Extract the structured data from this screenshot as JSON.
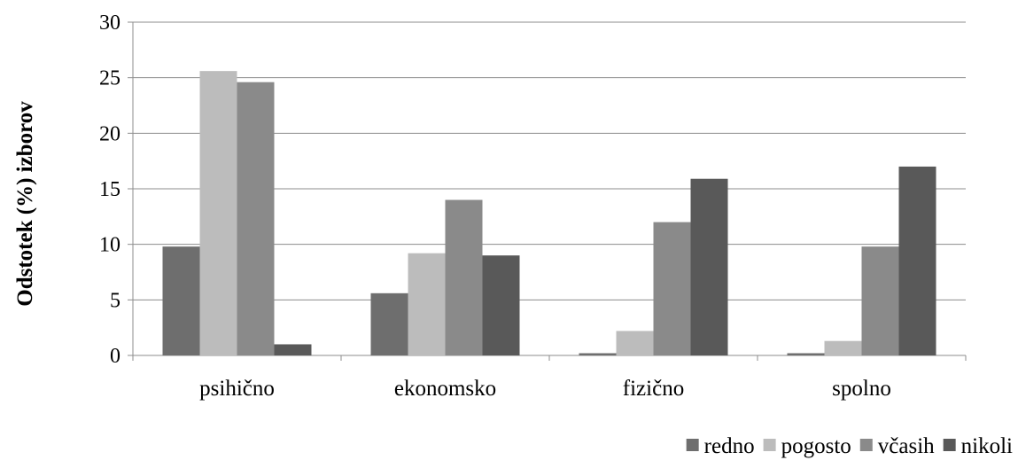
{
  "chart_data": {
    "type": "bar",
    "title": "",
    "xlabel": "",
    "ylabel": "Odstotek (%) izborov",
    "categories": [
      "psihično",
      "ekonomsko",
      "fizično",
      "spolno"
    ],
    "series": [
      {
        "name": "redno",
        "color": "#6e6e6e",
        "values": [
          9.8,
          5.6,
          0.2,
          0.2
        ]
      },
      {
        "name": "pogosto",
        "color": "#bcbcbc",
        "values": [
          25.6,
          9.2,
          2.2,
          1.3
        ]
      },
      {
        "name": "včasih",
        "color": "#8a8a8a",
        "values": [
          24.6,
          14.0,
          12.0,
          9.8
        ]
      },
      {
        "name": "nikoli",
        "color": "#595959",
        "values": [
          1.0,
          9.0,
          15.9,
          17.0
        ]
      }
    ],
    "ylim": [
      0,
      30
    ],
    "yticks": [
      0,
      5,
      10,
      15,
      20,
      25,
      30
    ],
    "grid": true,
    "legend_position": "bottom-right"
  }
}
